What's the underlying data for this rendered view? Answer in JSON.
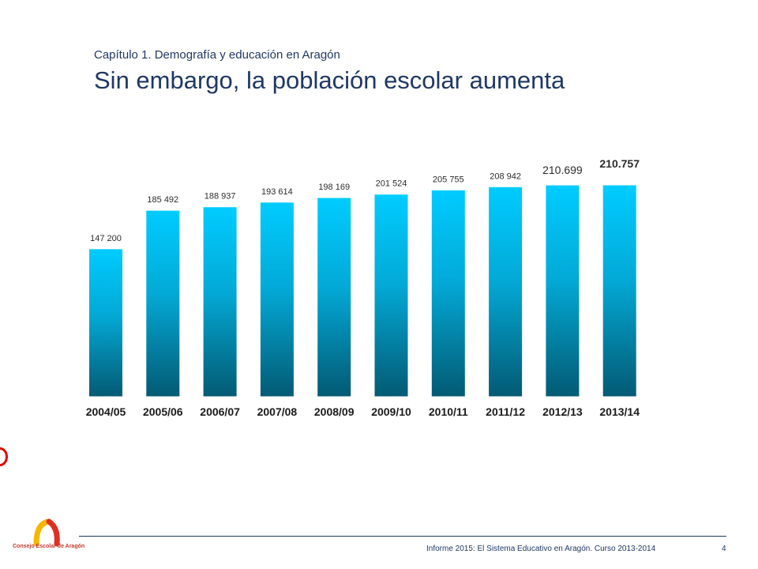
{
  "header": {
    "subtitle": "Capítulo 1. Demografía y educación en Aragón",
    "title": "Sin embargo, la población escolar aumenta"
  },
  "chart_data": {
    "type": "bar",
    "categories": [
      "2004/05",
      "2005/06",
      "2006/07",
      "2007/08",
      "2008/09",
      "2009/10",
      "2010/11",
      "2011/12",
      "2012/13",
      "2013/14"
    ],
    "values": [
      147200,
      185492,
      188937,
      193614,
      198169,
      201524,
      205755,
      208942,
      210699,
      210757
    ],
    "labels": [
      "147 200",
      "185 492",
      "188 937",
      "193 614",
      "198 169",
      "201 524",
      "205 755",
      "208 942",
      "210.699",
      "210.757"
    ],
    "colors": {
      "bar_top": "#00ccff",
      "bar_bottom": "#035a73"
    }
  },
  "footer": {
    "text": "Informe 2015: El Sistema Educativo en Aragón. Curso 2013-2014",
    "page": "4",
    "logo_text": "Consejo Escolar de Aragón"
  }
}
